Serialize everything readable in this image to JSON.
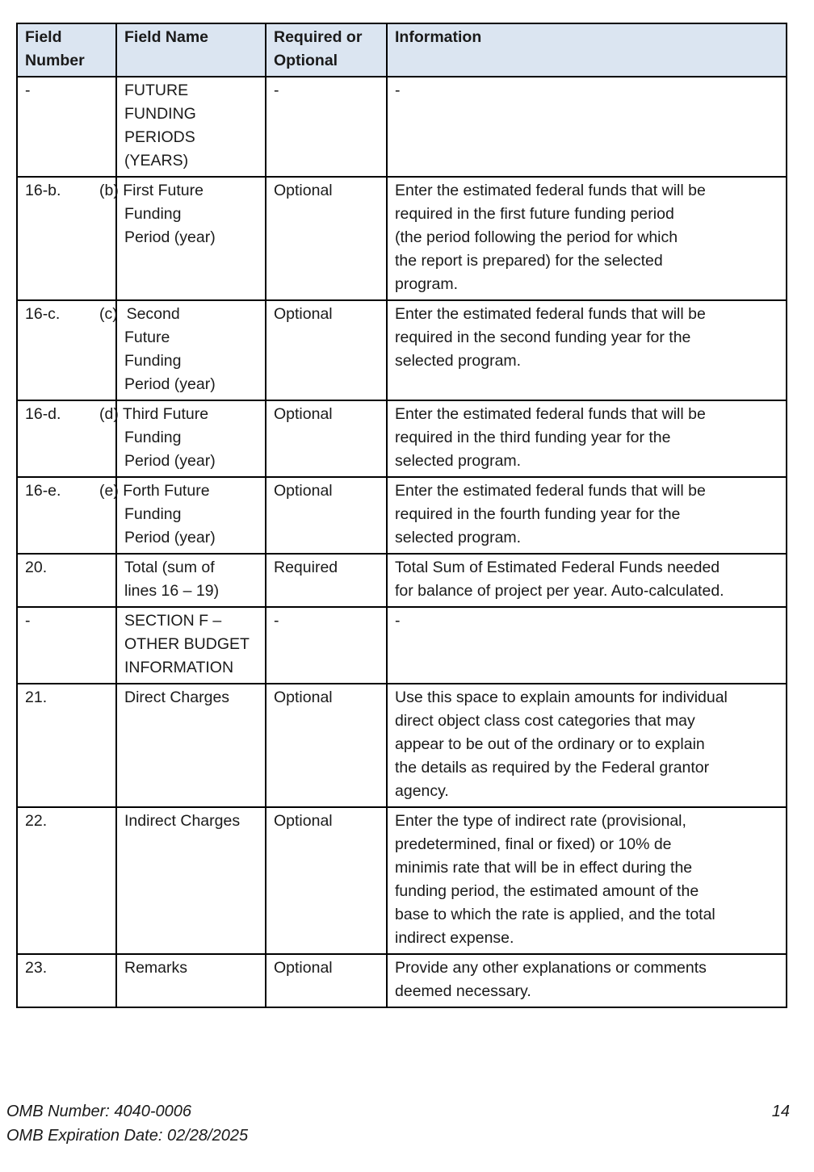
{
  "table": {
    "headers": [
      "Field\nNumber",
      "Field Name",
      "Required or\nOptional",
      "Information"
    ],
    "rows": [
      {
        "field_number": "-",
        "field_name": "FUTURE\nFUNDING\nPERIODS\n(YEARS)",
        "required": "-",
        "information": "-"
      },
      {
        "field_number": "16-b.",
        "field_name": "(b) First Future\nFunding\nPeriod (year)",
        "required": "Optional",
        "information": "Enter the estimated federal funds that will be\nrequired in the first future funding period\n(the period following the period for which\nthe report is prepared) for the selected\nprogram."
      },
      {
        "field_number": "16-c.",
        "field_name": "(c)  Second\nFuture\nFunding\nPeriod (year)",
        "required": "Optional",
        "information": "Enter the estimated federal funds that will be\nrequired in the second funding year for the\nselected program."
      },
      {
        "field_number": "16-d.",
        "field_name": "(d) Third Future\nFunding\nPeriod (year)",
        "required": "Optional",
        "information": "Enter the estimated federal funds that will be\nrequired in the third funding year for the\nselected program."
      },
      {
        "field_number": "16-e.",
        "field_name": "(e) Forth Future\nFunding\nPeriod (year)",
        "required": "Optional",
        "information": "Enter the estimated federal funds that will be\nrequired in the fourth funding year for the\nselected program."
      },
      {
        "field_number": "20.",
        "field_name": "Total (sum of\nlines 16 – 19)",
        "required": "Required",
        "information": "Total Sum of Estimated Federal Funds needed\nfor balance of project per year. Auto-calculated."
      },
      {
        "field_number": "-",
        "field_name": "SECTION F –\nOTHER BUDGET\nINFORMATION",
        "required": "-",
        "information": "-"
      },
      {
        "field_number": "21.",
        "field_name": "Direct Charges",
        "required": "Optional",
        "information": "Use this space to explain amounts for individual\ndirect object class cost categories that may\nappear to be out of the ordinary or to explain\nthe details as required by the Federal grantor\nagency."
      },
      {
        "field_number": "22.",
        "field_name": "Indirect Charges",
        "required": "Optional",
        "information": "Enter the type of indirect rate (provisional,\npredetermined, final or fixed) or 10% de\nminimis rate that will be in effect during the\nfunding period, the estimated amount of the\nbase to which the rate is applied, and the total\nindirect expense."
      },
      {
        "field_number": "23.",
        "field_name": "Remarks",
        "required": "Optional",
        "information": "Provide any other explanations or comments\ndeemed necessary."
      }
    ]
  },
  "footer": {
    "omb_number": "OMB Number: 4040-0006",
    "omb_expiration": "OMB Expiration Date: 02/28/2025",
    "page_number": "14"
  },
  "colors": {
    "header_background": "#dbe5f1",
    "border": "#000000",
    "text": "#1a1a1a"
  }
}
